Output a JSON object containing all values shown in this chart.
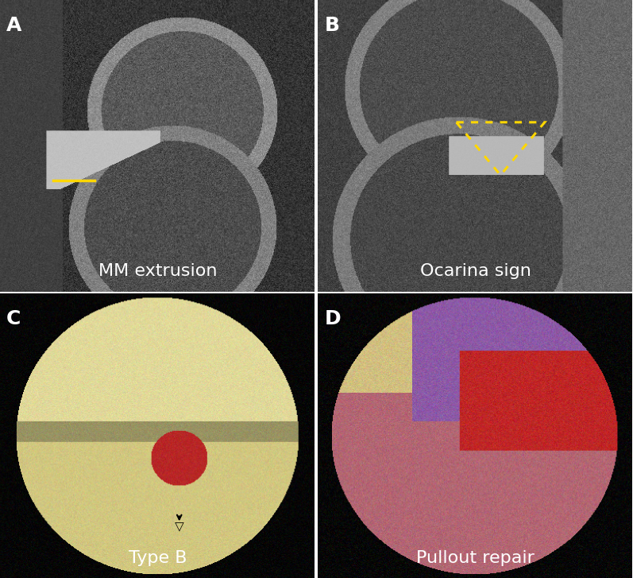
{
  "panel_labels": [
    "A",
    "B",
    "C",
    "D"
  ],
  "panel_captions": [
    "MM extrusion",
    "Ocarina sign",
    "Type B",
    "Pullout repair"
  ],
  "label_color": "white",
  "caption_color": "white",
  "label_fontsize": 18,
  "caption_fontsize": 16,
  "background_color": "white",
  "border_color": "white",
  "yellow_line_color": "#FFD700",
  "yellow_dot_color": "#FFD700",
  "arrowhead_color": "black",
  "fig_width": 7.97,
  "fig_height": 7.27
}
